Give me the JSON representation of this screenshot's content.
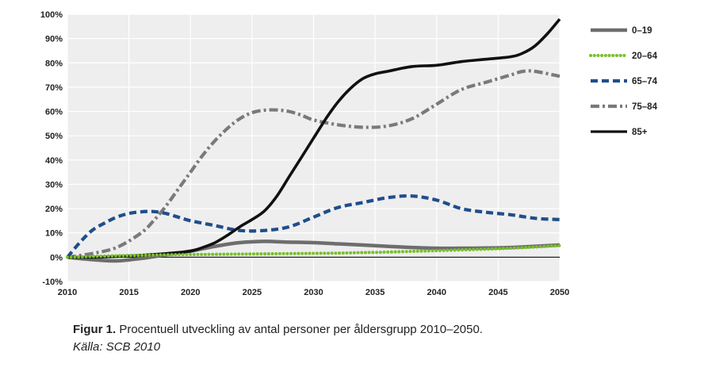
{
  "chart_data": {
    "type": "line",
    "x_ticks": [
      "2010",
      "2015",
      "2020",
      "2025",
      "2030",
      "2035",
      "2040",
      "2045",
      "2050"
    ],
    "y_ticks": [
      "100%",
      "90%",
      "80%",
      "70%",
      "60%",
      "50%",
      "40%",
      "30%",
      "20%",
      "10%",
      "0%",
      "-10%"
    ],
    "xlim": [
      2010,
      2050
    ],
    "ylim": [
      -10,
      100
    ],
    "grid": true,
    "legend_position": "right",
    "series": [
      {
        "name": "0–19",
        "color": "#6d6d6d",
        "style": "solid",
        "x": [
          2010,
          2012,
          2014,
          2016,
          2018,
          2020,
          2022,
          2024,
          2026,
          2028,
          2030,
          2032,
          2034,
          2036,
          2038,
          2040,
          2042,
          2044,
          2046,
          2048,
          2050
        ],
        "y": [
          0,
          -1,
          -1.5,
          -0.5,
          1,
          2.5,
          4.5,
          6,
          6.5,
          6.2,
          6,
          5.5,
          5,
          4.5,
          4,
          3.7,
          3.7,
          3.8,
          4,
          4.5,
          5
        ]
      },
      {
        "name": "20–64",
        "color": "#7bbf2e",
        "style": "dots",
        "x": [
          2010,
          2012,
          2014,
          2016,
          2018,
          2020,
          2022,
          2024,
          2026,
          2028,
          2030,
          2032,
          2034,
          2036,
          2038,
          2040,
          2042,
          2044,
          2046,
          2048,
          2050
        ],
        "y": [
          0,
          0.3,
          0.6,
          0.8,
          1,
          1.1,
          1.2,
          1.3,
          1.4,
          1.5,
          1.6,
          1.7,
          1.9,
          2.1,
          2.4,
          2.7,
          3,
          3.3,
          3.7,
          4.2,
          4.8
        ]
      },
      {
        "name": "65–74",
        "color": "#1f4e8c",
        "style": "dashed",
        "x": [
          2010,
          2011,
          2012,
          2013,
          2014,
          2015,
          2016,
          2017,
          2018,
          2019,
          2020,
          2022,
          2024,
          2026,
          2028,
          2030,
          2032,
          2034,
          2036,
          2038,
          2040,
          2042,
          2044,
          2046,
          2048,
          2050
        ],
        "y": [
          0,
          6,
          11,
          14,
          16.5,
          18,
          18.7,
          18.8,
          18,
          16.5,
          15,
          13,
          11,
          11,
          12.5,
          16.5,
          20.5,
          22.5,
          24.5,
          25.2,
          23.5,
          20,
          18.5,
          17.5,
          16,
          15.5
        ]
      },
      {
        "name": "75–84",
        "color": "#7a7a7a",
        "style": "dashdot",
        "x": [
          2010,
          2012,
          2014,
          2016,
          2017,
          2018,
          2019,
          2020,
          2021,
          2022,
          2023,
          2024,
          2025,
          2026,
          2027,
          2028,
          2029,
          2030,
          2032,
          2034,
          2036,
          2038,
          2040,
          2042,
          2044,
          2046,
          2047,
          2048,
          2050
        ],
        "y": [
          0,
          1.5,
          4,
          10,
          15,
          21,
          28,
          35,
          42,
          48,
          53,
          57,
          59.5,
          60.5,
          60.6,
          60,
          58.5,
          56.5,
          54.5,
          53.5,
          54,
          57,
          63,
          69,
          72,
          75,
          76.5,
          76.5,
          74.5
        ]
      },
      {
        "name": "85+",
        "color": "#111111",
        "style": "solid-thick",
        "x": [
          2010,
          2012,
          2014,
          2016,
          2018,
          2020,
          2021,
          2022,
          2023,
          2024,
          2025,
          2026,
          2027,
          2028,
          2029,
          2030,
          2031,
          2032,
          2033,
          2034,
          2035,
          2036,
          2038,
          2040,
          2042,
          2044,
          2046,
          2047,
          2048,
          2049,
          2050
        ],
        "y": [
          0,
          0,
          0.3,
          0.8,
          1.5,
          2.5,
          4,
          6,
          9,
          12.5,
          15.5,
          19,
          25,
          33,
          41,
          49,
          57,
          64,
          69.5,
          73.5,
          75.5,
          76.5,
          78.5,
          79,
          80.5,
          81.5,
          82.5,
          84,
          87,
          92,
          98
        ]
      }
    ]
  },
  "caption": {
    "figure_label": "Figur 1.",
    "text": " Procentuell utveckling av antal personer per åldersgrupp 2010–2050.",
    "source": "Källa: SCB 2010"
  }
}
